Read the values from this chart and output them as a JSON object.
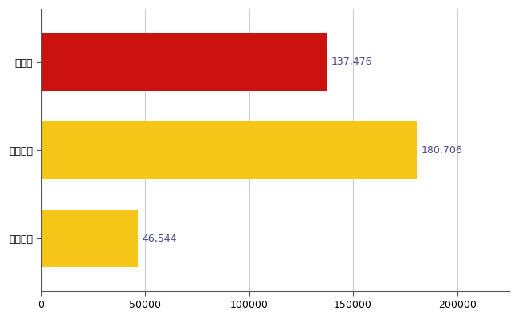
{
  "categories": [
    "大阪府",
    "全国最大",
    "全国平均"
  ],
  "values": [
    137476,
    180706,
    46544
  ],
  "bar_colors": [
    "#cc1111",
    "#f5c518",
    "#f5c518"
  ],
  "value_labels": [
    "137,476",
    "180,706",
    "46,544"
  ],
  "xlim": [
    0,
    225000
  ],
  "xticks": [
    0,
    50000,
    100000,
    150000,
    200000
  ],
  "xtick_labels": [
    "0",
    "50000",
    "100000",
    "150000",
    "200000"
  ],
  "background_color": "#ffffff",
  "bar_height": 0.65,
  "label_fontsize": 9,
  "tick_fontsize": 9,
  "value_label_color": "#4a4a8a",
  "grid_color": "#cccccc",
  "figsize": [
    6.5,
    4.0
  ],
  "dpi": 100
}
